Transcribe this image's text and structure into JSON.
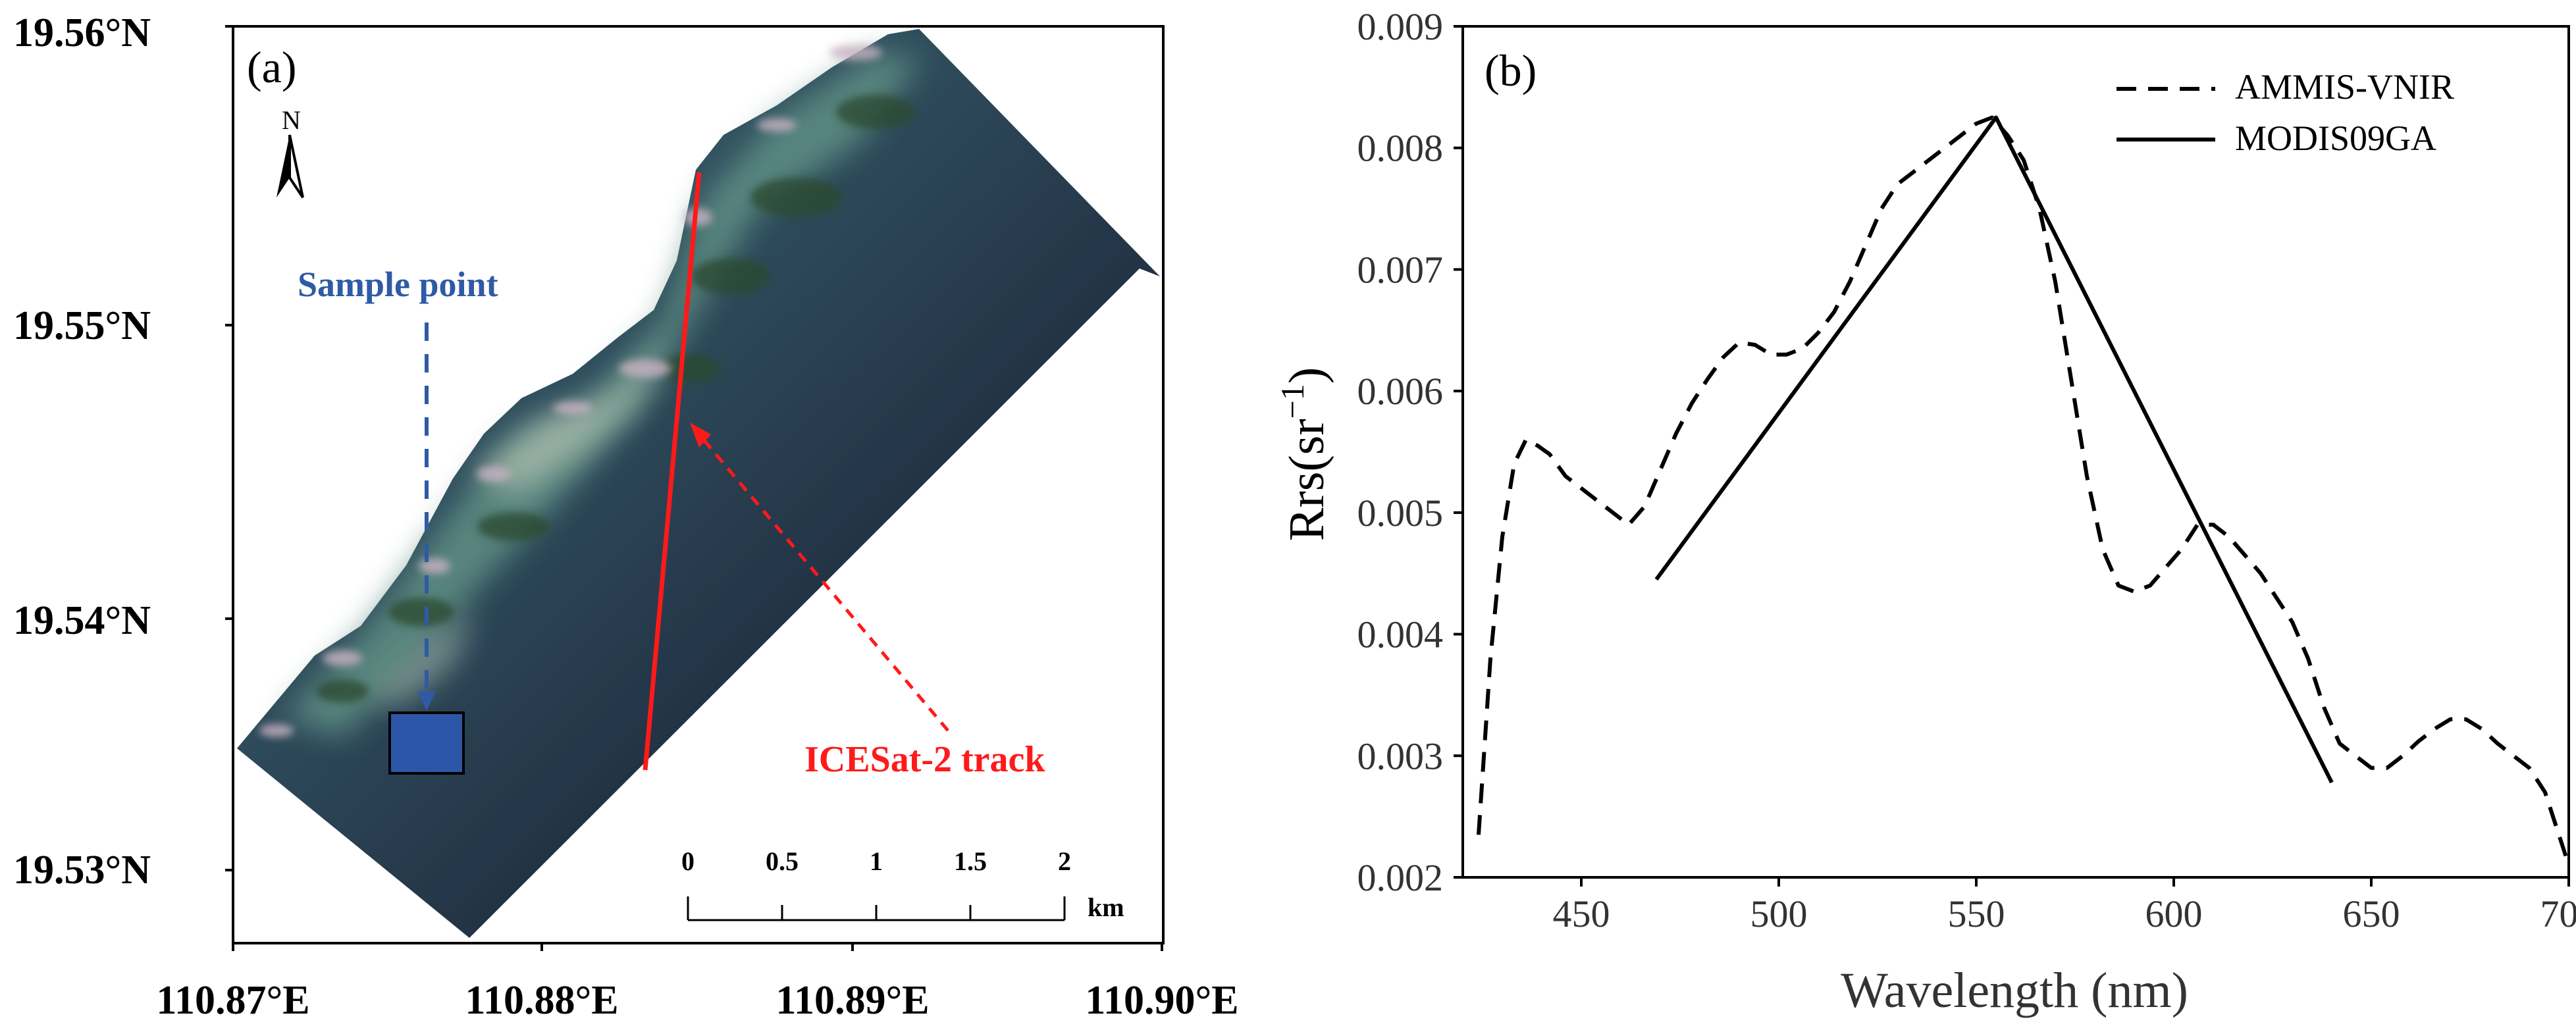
{
  "figure": {
    "panel_a": {
      "label": "(a)",
      "north_label": "N",
      "y_ticks": [
        "19.56°N",
        "19.55°N",
        "19.54°N",
        "19.53°N"
      ],
      "x_ticks": [
        "110.87°E",
        "110.88°E",
        "110.89°E",
        "110.90°E"
      ],
      "sample_point_label": "Sample point",
      "icesat_label": "ICESat-2 track",
      "scale_bar": {
        "ticks": [
          "0",
          "0.5",
          "1",
          "1.5",
          "2"
        ],
        "unit": "km"
      },
      "colors": {
        "track": "#ff1a1a",
        "sample": "#2c57a8",
        "sample_label": "#2f5aa6"
      }
    }
  },
  "chart_data": {
    "type": "line",
    "panel_label": "(b)",
    "title": "",
    "xlabel": "Wavelength (nm)",
    "ylabel_base": "Rrs(sr",
    "ylabel_sup": "−1",
    "ylabel_tail": ")",
    "xlim": [
      420,
      700
    ],
    "ylim": [
      0.002,
      0.009
    ],
    "x_ticks": [
      450,
      500,
      550,
      600,
      650,
      700
    ],
    "y_ticks": [
      0.002,
      0.003,
      0.004,
      0.005,
      0.006,
      0.007,
      0.008,
      0.009
    ],
    "x_tick_labels": [
      "450",
      "500",
      "550",
      "600",
      "650",
      "700"
    ],
    "y_tick_labels": [
      "0.002",
      "0.003",
      "0.004",
      "0.005",
      "0.006",
      "0.007",
      "0.008",
      "0.009"
    ],
    "legend": {
      "placement": "top-right"
    },
    "series": [
      {
        "name": "AMMIS-VNIR",
        "style": "dashed",
        "x": [
          424,
          427,
          430,
          433,
          436,
          439,
          442,
          446,
          450,
          454,
          458,
          462,
          466,
          470,
          474,
          478,
          482,
          486,
          490,
          494,
          498,
          502,
          506,
          510,
          514,
          518,
          522,
          526,
          530,
          534,
          538,
          542,
          546,
          550,
          554,
          558,
          562,
          566,
          570,
          574,
          578,
          582,
          586,
          590,
          594,
          598,
          602,
          606,
          610,
          614,
          618,
          622,
          626,
          630,
          634,
          638,
          642,
          646,
          650,
          654,
          658,
          662,
          666,
          670,
          674,
          678,
          682,
          686,
          690,
          694,
          698,
          700
        ],
        "y": [
          0.00235,
          0.0038,
          0.0048,
          0.0054,
          0.0056,
          0.00555,
          0.00548,
          0.0053,
          0.0052,
          0.0051,
          0.005,
          0.0049,
          0.00505,
          0.00535,
          0.00565,
          0.0059,
          0.0061,
          0.00628,
          0.0064,
          0.00638,
          0.0063,
          0.0063,
          0.00635,
          0.00648,
          0.00665,
          0.0069,
          0.0072,
          0.0075,
          0.0077,
          0.0078,
          0.0079,
          0.008,
          0.0081,
          0.0082,
          0.00825,
          0.0081,
          0.0079,
          0.0075,
          0.0069,
          0.0061,
          0.0053,
          0.0047,
          0.0044,
          0.00435,
          0.0044,
          0.00455,
          0.0047,
          0.0049,
          0.0049,
          0.0048,
          0.00465,
          0.0045,
          0.0043,
          0.0041,
          0.0038,
          0.0034,
          0.0031,
          0.003,
          0.0029,
          0.0029,
          0.003,
          0.00312,
          0.00322,
          0.0033,
          0.0033,
          0.00322,
          0.0031,
          0.003,
          0.0029,
          0.0027,
          0.0023,
          0.0021
        ]
      },
      {
        "name": "MODIS09GA",
        "style": "solid",
        "x": [
          469,
          555,
          640
        ],
        "y": [
          0.00445,
          0.00825,
          0.00278
        ]
      }
    ]
  }
}
